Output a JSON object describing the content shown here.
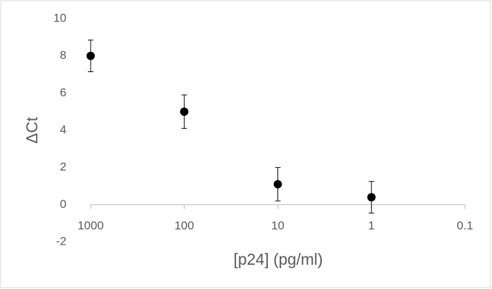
{
  "chart_data": {
    "type": "scatter",
    "x_label": "[p24] (pg/ml)",
    "y_label": "ΔCt",
    "x": [
      1000,
      100,
      10,
      1
    ],
    "series": [
      {
        "color": "#000000",
        "values": [
          8.0,
          5.0,
          1.1,
          0.4
        ],
        "errors": [
          0.85,
          0.9,
          0.9,
          0.85
        ]
      }
    ],
    "xlim": [
      1000,
      0.1
    ],
    "xticks": [
      1000,
      100,
      10,
      1,
      0.1
    ],
    "x_log": true,
    "ylim": [
      -2,
      10
    ],
    "yticks": [
      -2,
      0,
      2,
      4,
      6,
      8,
      10
    ],
    "grid": false
  }
}
